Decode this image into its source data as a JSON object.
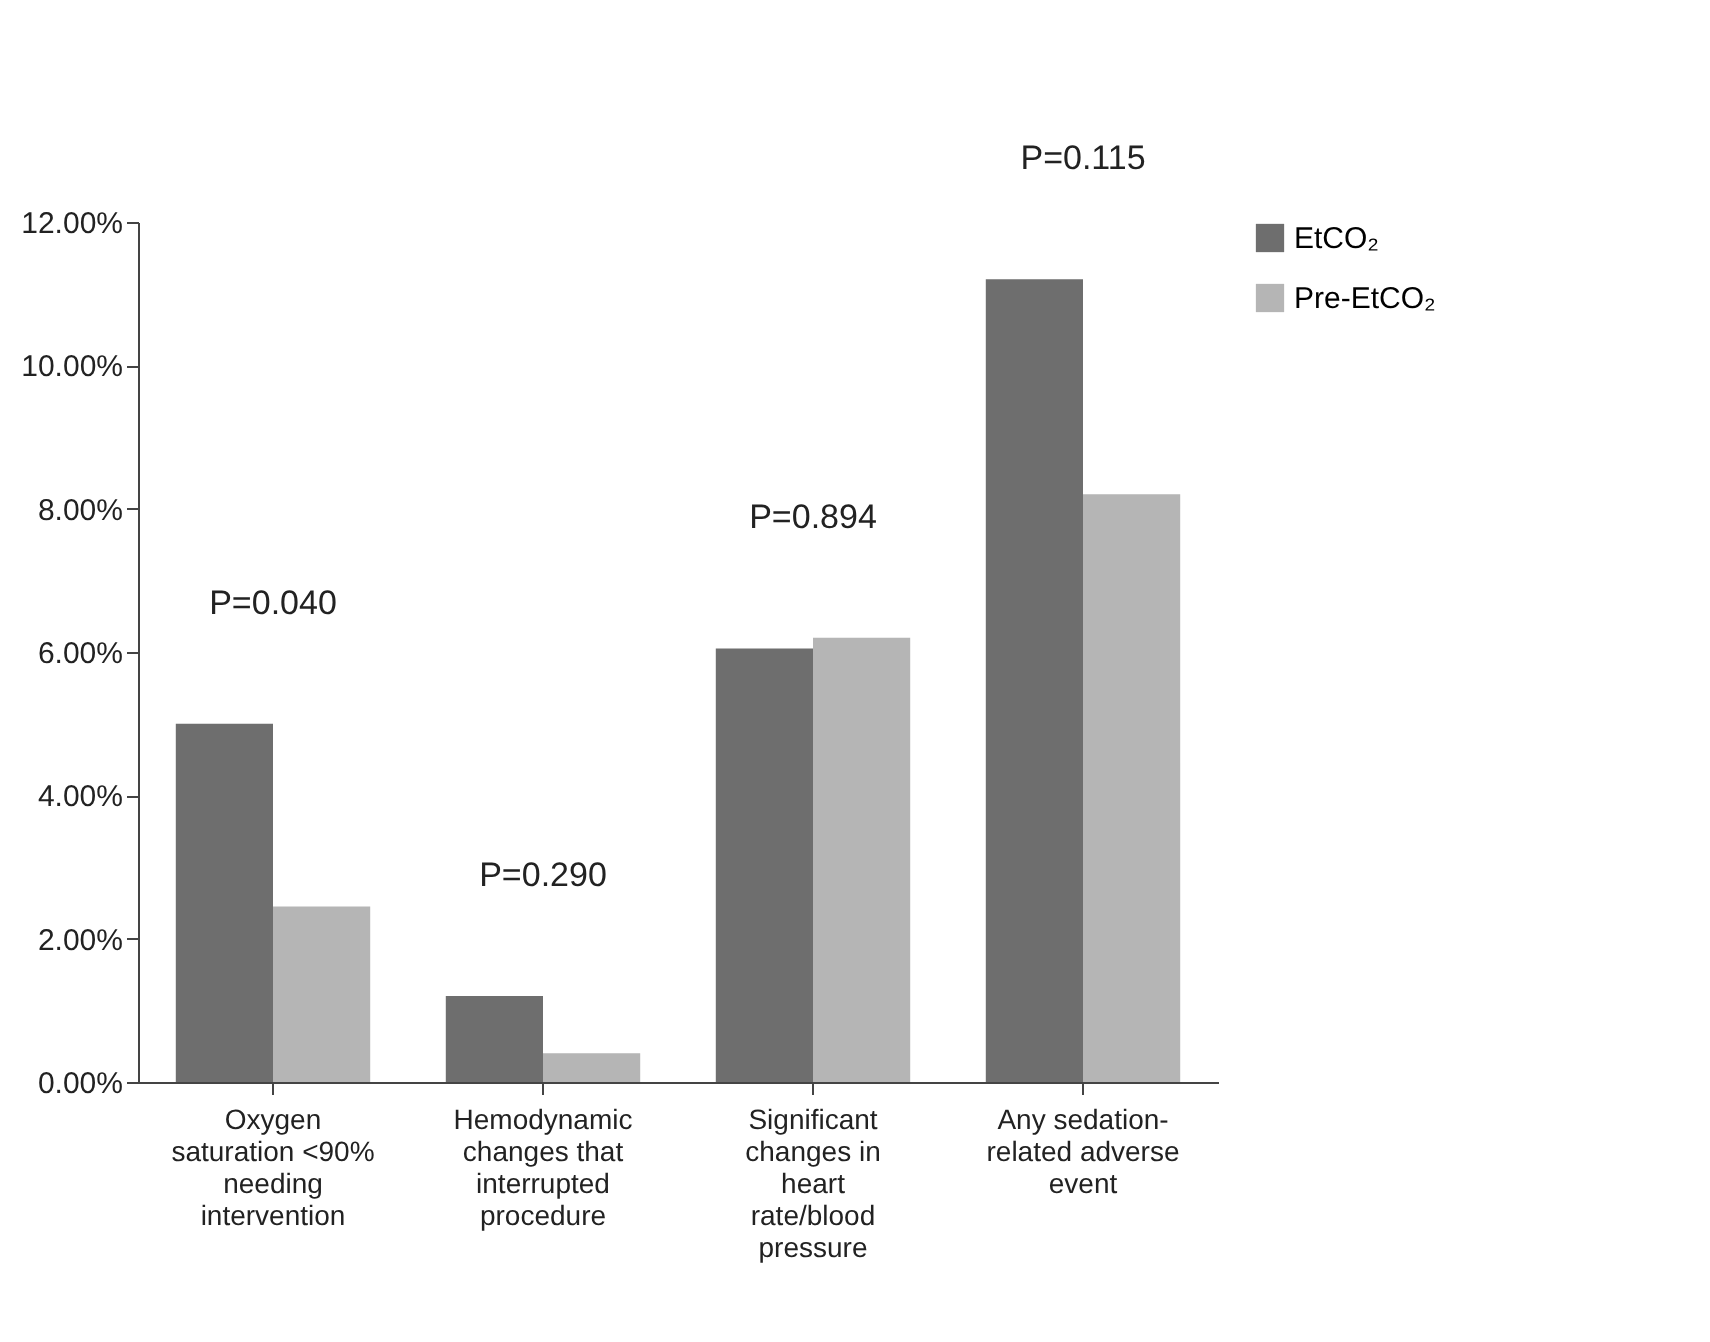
{
  "chart_data": {
    "type": "bar",
    "categories": [
      "Oxygen saturation <90% needing intervention",
      "Hemodynamic changes that interrupted procedure",
      "Significant changes in heart rate/blood pressure",
      "Any sedation-related adverse event"
    ],
    "series": [
      {
        "name": "EtCO₂",
        "color": "#6e6e6e",
        "values": [
          5.0,
          1.2,
          6.05,
          11.2
        ]
      },
      {
        "name": "Pre-EtCO₂",
        "color": "#b5b5b5",
        "values": [
          2.45,
          0.4,
          6.2,
          8.2
        ]
      }
    ],
    "ylim": [
      0,
      12
    ],
    "yticks": [
      {
        "value": 0,
        "label": "0.00%"
      },
      {
        "value": 2,
        "label": "2.00%"
      },
      {
        "value": 4,
        "label": "4.00%"
      },
      {
        "value": 6,
        "label": "6.00%"
      },
      {
        "value": 8,
        "label": "8.00%"
      },
      {
        "value": 10,
        "label": "10.00%"
      },
      {
        "value": 12,
        "label": "12.00%"
      }
    ],
    "annotations": [
      "P=0.040",
      "P=0.290",
      "P=0.894",
      "P=0.115"
    ],
    "grid": false,
    "legend": "right"
  }
}
